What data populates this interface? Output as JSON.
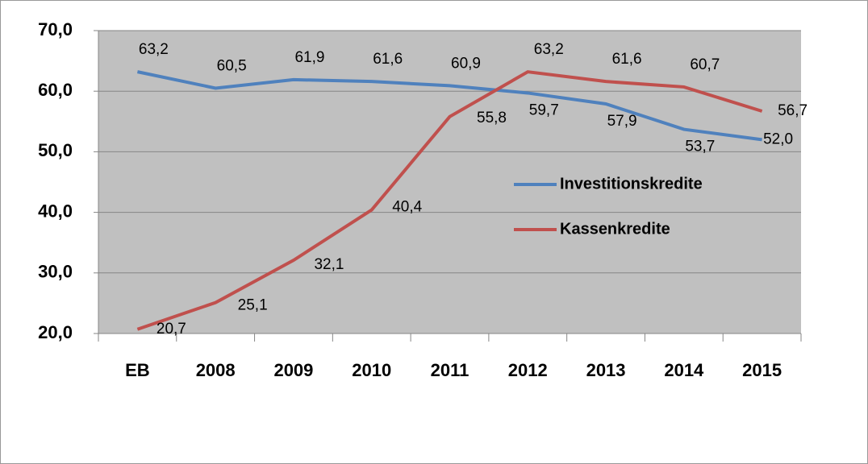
{
  "chart_data": {
    "type": "line",
    "categories": [
      "EB",
      "2008",
      "2009",
      "2010",
      "2011",
      "2012",
      "2013",
      "2014",
      "2015"
    ],
    "series": [
      {
        "name": "Investitionskredite",
        "color": "#4f81bd",
        "values": [
          63.2,
          60.5,
          61.9,
          61.6,
          60.9,
          59.7,
          57.9,
          53.7,
          52.0
        ],
        "value_labels": [
          "63,2",
          "60,5",
          "61,9",
          "61,6",
          "60,9",
          "59,7",
          "57,9",
          "53,7",
          "52,0"
        ]
      },
      {
        "name": "Kassenkredite",
        "color": "#c0504d",
        "values": [
          20.7,
          25.1,
          32.1,
          40.4,
          55.8,
          63.2,
          61.6,
          60.7,
          56.7
        ],
        "value_labels": [
          "20,7",
          "25,1",
          "32,1",
          "40,4",
          "55,8",
          "63,2",
          "61,6",
          "60,7",
          "56,7"
        ]
      }
    ],
    "ylim": [
      20,
      70
    ],
    "yticks": [
      {
        "value": 20,
        "label": "20,0"
      },
      {
        "value": 30,
        "label": "30,0"
      },
      {
        "value": 40,
        "label": "40,0"
      },
      {
        "value": 50,
        "label": "50,0"
      },
      {
        "value": 60,
        "label": "60,0"
      },
      {
        "value": 70,
        "label": "70,0"
      }
    ],
    "grid": true,
    "plot_background": "#c0c0c0"
  }
}
